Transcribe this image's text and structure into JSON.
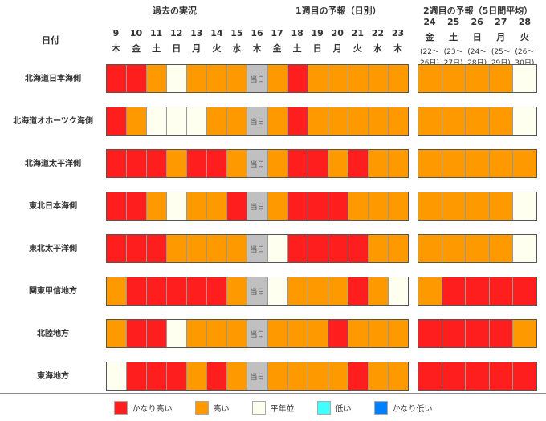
{
  "chart_data": {
    "type": "table",
    "headers": {
      "past": "過去の実況",
      "week1": "1週目の予報（日別）",
      "week2": "2週目の予報（5日間平均）",
      "date_label": "日付",
      "today": "当日"
    },
    "week1_days": [
      {
        "d": "9",
        "w": "木"
      },
      {
        "d": "10",
        "w": "金"
      },
      {
        "d": "11",
        "w": "土"
      },
      {
        "d": "12",
        "w": "日"
      },
      {
        "d": "13",
        "w": "月"
      },
      {
        "d": "14",
        "w": "火"
      },
      {
        "d": "15",
        "w": "水"
      },
      {
        "d": "16",
        "w": "木"
      },
      {
        "d": "17",
        "w": "金"
      },
      {
        "d": "18",
        "w": "土"
      },
      {
        "d": "19",
        "w": "日"
      },
      {
        "d": "20",
        "w": "月"
      },
      {
        "d": "21",
        "w": "火"
      },
      {
        "d": "22",
        "w": "水"
      },
      {
        "d": "23",
        "w": "木"
      }
    ],
    "week2_days": [
      {
        "d": "24",
        "w": "金",
        "r1": "(22～",
        "r2": "26日)"
      },
      {
        "d": "25",
        "w": "土",
        "r1": "(23～",
        "r2": "27日)"
      },
      {
        "d": "26",
        "w": "日",
        "r1": "(24～",
        "r2": "28日)"
      },
      {
        "d": "27",
        "w": "月",
        "r1": "(25～",
        "r2": "29日)"
      },
      {
        "d": "28",
        "w": "火",
        "r1": "(26～",
        "r2": "30日)"
      }
    ],
    "legend": [
      {
        "key": "R",
        "label": "かなり高い",
        "color": "#ff1e1e"
      },
      {
        "key": "O",
        "label": "高い",
        "color": "#ff9900"
      },
      {
        "key": "N",
        "label": "平年並",
        "color": "#fffff0"
      },
      {
        "key": "L",
        "label": "低い",
        "color": "#40ffff"
      },
      {
        "key": "B",
        "label": "かなり低い",
        "color": "#0080ff"
      }
    ],
    "today_color": "#c0c0c0",
    "rows": [
      {
        "region": "北海道日本海側",
        "daily": "RRONOOOTOROOOOO",
        "week2": "OOOON"
      },
      {
        "region": "北海道オホーツク海側",
        "daily": "RONNNOOTOROOOOO",
        "week2": "OOOON"
      },
      {
        "region": "北海道太平洋側",
        "daily": "RRRORROTORROROO",
        "week2": "OOOOO"
      },
      {
        "region": "東北日本海側",
        "daily": "RRONOORTORRROOO",
        "week2": "OOOON"
      },
      {
        "region": "東北太平洋側",
        "daily": "RRROOOOTNRRRROO",
        "week2": "OOOON"
      },
      {
        "region": "関東甲信地方",
        "daily": "ORRRRROTNOOORON",
        "week2": "ORRRR"
      },
      {
        "region": "北陸地方",
        "daily": "ORRNOOOTOOOROOO",
        "week2": "RRRRO"
      },
      {
        "region": "東海地方",
        "daily": "NRRRORОTOOOOROO",
        "week2": "RRRRR"
      }
    ]
  }
}
